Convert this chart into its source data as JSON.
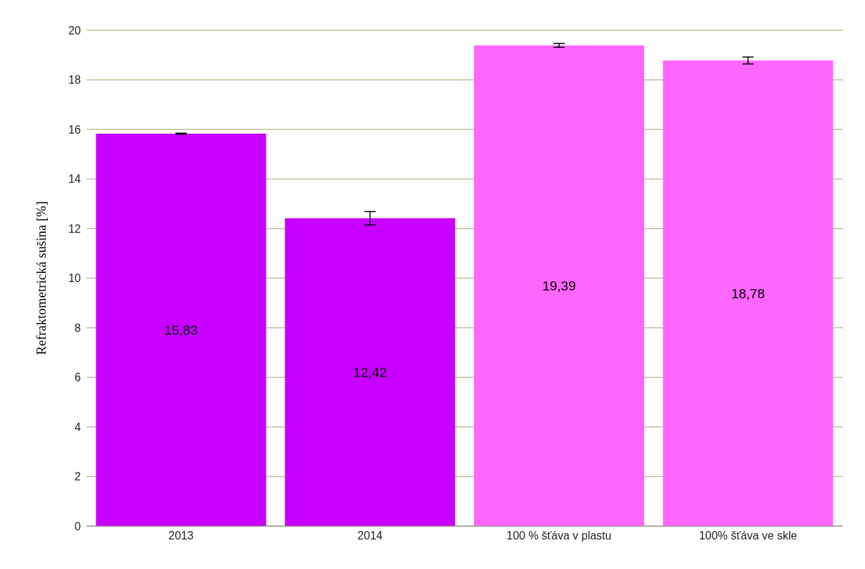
{
  "chart_data": {
    "type": "bar",
    "ylabel": "Refraktometrická sušina [%]",
    "categories": [
      "2013",
      "2014",
      "100 % šťáva v plastu",
      "100% šťáva ve skle"
    ],
    "values": [
      15.83,
      12.42,
      19.39,
      18.78
    ],
    "colors": [
      "#c800ff",
      "#c800ff",
      "#ff66ff",
      "#ff66ff"
    ],
    "errors": [
      0.02,
      0.27,
      0.08,
      0.14
    ],
    "value_labels": [
      "15,83",
      "12,42",
      "19,39",
      "18,78"
    ],
    "ylim": [
      0,
      20
    ],
    "yticks": [
      0,
      2,
      4,
      6,
      8,
      10,
      12,
      14,
      16,
      18,
      20
    ],
    "grid": "y"
  }
}
